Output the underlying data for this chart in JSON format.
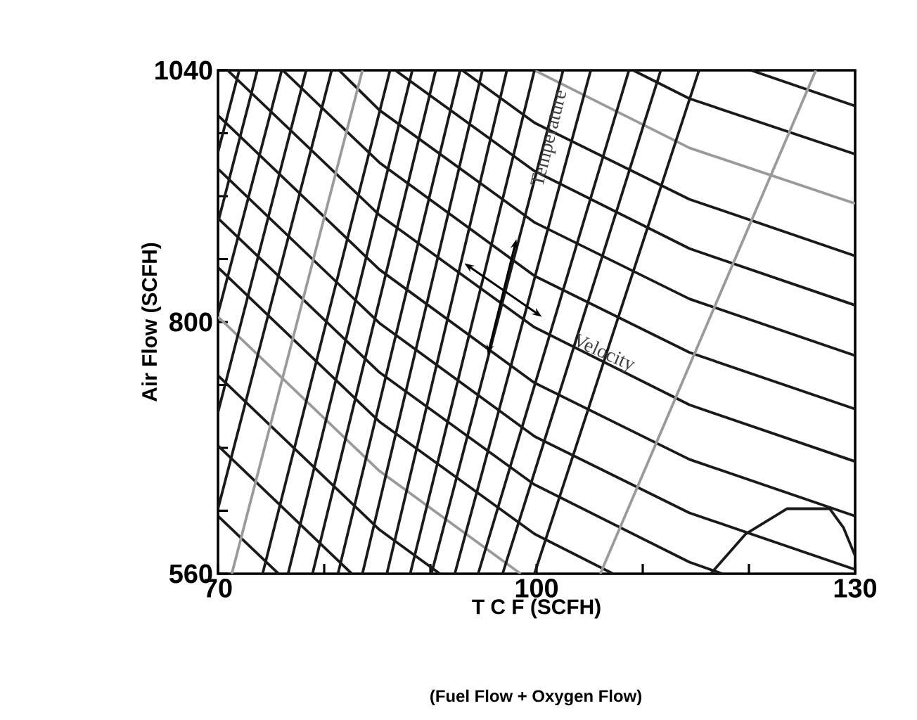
{
  "chart_data": {
    "type": "line",
    "xlabel": "T C F (SCFH)",
    "ylabel": "Air Flow (SCFH)",
    "annotations": [
      "Temperature",
      "Velocity",
      "(Fuel Flow + Oxygen Flow)"
    ],
    "xlim": [
      70,
      130
    ],
    "ylim": [
      560,
      1040
    ],
    "xticks": [
      70,
      {
        "value": 80,
        "label": null
      },
      {
        "value": 90,
        "label": null
      },
      100,
      {
        "value": 110,
        "label": null
      },
      {
        "value": 120,
        "label": null
      },
      130
    ],
    "yticks": [
      560,
      {
        "value": 620,
        "label": null
      },
      {
        "value": 680,
        "label": null
      },
      {
        "value": 740,
        "label": null
      },
      800,
      {
        "value": 860,
        "label": null
      },
      {
        "value": 920,
        "label": null
      },
      {
        "value": 980,
        "label": null
      },
      1040
    ],
    "marker": "none",
    "line_style": "solid",
    "series": [
      {
        "color": "#1a1a1a",
        "x": [
          120.2,
          130
        ],
        "values": [
          1040,
          1006
        ]
      },
      {
        "color": "#1a1a1a",
        "x": [
          109.1,
          114.4,
          130
        ],
        "values": [
          1040,
          1013,
          960
        ]
      },
      {
        "color": "#9a9a9a",
        "x": [
          99.8,
          114.4,
          130
        ],
        "values": [
          1040,
          966,
          913
        ]
      },
      {
        "color": "#1a1a1a",
        "x": [
          93.0,
          99.8,
          114.4,
          130
        ],
        "values": [
          1040,
          990,
          917,
          863
        ]
      },
      {
        "color": "#1a1a1a",
        "x": [
          86.7,
          99.8,
          114.4,
          130
        ],
        "values": [
          1040,
          944,
          870,
          816
        ]
      },
      {
        "color": "#1a1a1a",
        "x": [
          81.4,
          85.2,
          99.8,
          114.4,
          130
        ],
        "values": [
          1040,
          1002,
          895,
          822,
          768
        ]
      },
      {
        "color": "#1a1a1a",
        "x": [
          76.1,
          85.2,
          99.8,
          114.4,
          130
        ],
        "values": [
          1040,
          952,
          844,
          771,
          717
        ]
      },
      {
        "color": "#1a1a1a",
        "x": [
          70.9,
          85.2,
          99.8,
          114.4,
          130
        ],
        "values": [
          1040,
          902,
          795,
          721,
          667
        ]
      },
      {
        "color": "#1a1a1a",
        "x": [
          70,
          85.2,
          99.8,
          114.4,
          130
        ],
        "values": [
          997,
          850,
          742,
          669,
          615
        ]
      },
      {
        "color": "#1a1a1a",
        "x": [
          70,
          85.2,
          99.8,
          114.4,
          130
        ],
        "values": [
          946,
          799,
          691,
          618,
          564
        ]
      },
      {
        "color": "#1a1a1a",
        "x": [
          70,
          85.2,
          99.8,
          114.4,
          117.5
        ],
        "values": [
          899,
          752,
          645,
          571,
          560
        ]
      },
      {
        "color": "#1a1a1a",
        "x": [
          70,
          85.2,
          99.8,
          107.2
        ],
        "values": [
          852,
          705,
          598,
          560
        ]
      },
      {
        "color": "#9a9a9a",
        "x": [
          70,
          85.2,
          98.5
        ],
        "values": [
          805,
          658,
          560
        ]
      },
      {
        "color": "#1a1a1a",
        "x": [
          70,
          85.2,
          90.9
        ],
        "values": [
          749,
          602,
          560
        ]
      },
      {
        "color": "#1a1a1a",
        "x": [
          70,
          82.6
        ],
        "values": [
          682,
          560
        ]
      },
      {
        "color": "#1a1a1a",
        "x": [
          70,
          75.7
        ],
        "values": [
          615,
          560
        ]
      },
      {
        "color": "#1a1a1a",
        "x": [
          70,
          72.0
        ],
        "values": [
          962,
          1040
        ]
      },
      {
        "color": "#1a1a1a",
        "x": [
          70,
          73.7
        ],
        "values": [
          895,
          1040
        ]
      },
      {
        "color": "#1a1a1a",
        "x": [
          70,
          76.0
        ],
        "values": [
          808,
          1040
        ]
      },
      {
        "color": "#1a1a1a",
        "x": [
          70,
          78.3
        ],
        "values": [
          714,
          1040
        ]
      },
      {
        "color": "#1a1a1a",
        "x": [
          70,
          80.7
        ],
        "values": [
          622,
          1040
        ]
      },
      {
        "color": "#9a9a9a",
        "x": [
          71.3,
          83.6
        ],
        "values": [
          560,
          1040
        ]
      },
      {
        "color": "#1a1a1a",
        "x": [
          74.2,
          86.2
        ],
        "values": [
          560,
          1040
        ]
      },
      {
        "color": "#1a1a1a",
        "x": [
          76.6,
          88.3
        ],
        "values": [
          560,
          1040
        ]
      },
      {
        "color": "#1a1a1a",
        "x": [
          78.9,
          90.5
        ],
        "values": [
          560,
          1040
        ]
      },
      {
        "color": "#1a1a1a",
        "x": [
          81.3,
          92.8
        ],
        "values": [
          560,
          1040
        ]
      },
      {
        "color": "#1a1a1a",
        "x": [
          83.6,
          94.9
        ],
        "values": [
          560,
          1040
        ]
      },
      {
        "color": "#1a1a1a",
        "x": [
          85.9,
          97.2
        ],
        "values": [
          560,
          1040
        ]
      },
      {
        "color": "#1a1a1a",
        "x": [
          88.1,
          99.8
        ],
        "values": [
          560,
          1040
        ]
      },
      {
        "color": "#1a1a1a",
        "x": [
          90.1,
          102.5
        ],
        "values": [
          560,
          1040
        ]
      },
      {
        "color": "#1a1a1a",
        "x": [
          92.3,
          105.1
        ],
        "values": [
          560,
          1040
        ]
      },
      {
        "color": "#1a1a1a",
        "x": [
          94.5,
          108.7
        ],
        "values": [
          560,
          1040
        ]
      },
      {
        "color": "#1a1a1a",
        "x": [
          96.8,
          111.7
        ],
        "values": [
          560,
          1040
        ]
      },
      {
        "color": "#1a1a1a",
        "x": [
          99.8,
          115.3
        ],
        "values": [
          560,
          1040
        ]
      },
      {
        "color": "#9a9a9a",
        "x": [
          106.0,
          126.3
        ],
        "values": [
          560,
          1040
        ]
      },
      {
        "color": "#1a1a1a",
        "x": [
          116.4,
          119.7,
          123.6,
          127.6,
          128.9,
          130
        ],
        "values": [
          560,
          598,
          622,
          622,
          604,
          577
        ]
      }
    ]
  }
}
